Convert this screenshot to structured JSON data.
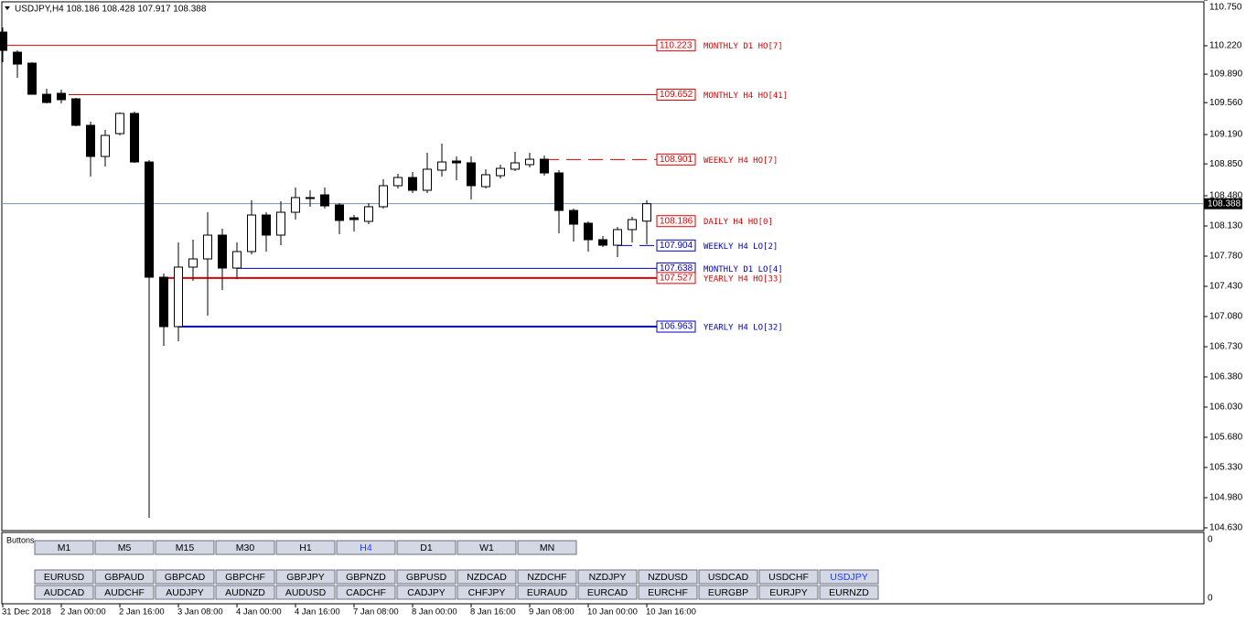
{
  "header": "USDJPY,H4  108.186 108.428 107.917 108.388",
  "chart_data": {
    "type": "candlestick",
    "open": [
      110.378,
      110.145,
      110.018,
      109.657,
      109.668,
      109.604,
      109.297,
      108.936,
      109.201,
      109.435,
      108.872,
      107.536,
      106.963,
      107.653,
      107.748,
      108.024,
      107.642,
      107.833,
      108.257,
      108.024,
      108.289,
      108.459,
      108.491,
      108.374,
      108.225,
      108.183,
      108.353,
      108.597,
      108.692,
      108.544,
      108.777,
      108.883,
      108.862,
      108.586,
      108.713,
      108.788,
      108.841,
      108.904,
      108.745,
      108.31,
      108.162,
      107.971,
      107.907,
      108.088,
      108.186
    ],
    "high": [
      110.431,
      110.166,
      110.028,
      109.721,
      109.71,
      109.615,
      109.339,
      109.244,
      109.445,
      109.456,
      108.894,
      107.578,
      107.939,
      107.971,
      108.289,
      108.098,
      107.939,
      108.427,
      108.289,
      108.416,
      108.575,
      108.544,
      108.575,
      108.395,
      108.257,
      108.395,
      108.671,
      108.735,
      108.756,
      108.978,
      109.085,
      108.936,
      108.936,
      108.788,
      108.841,
      108.989,
      108.978,
      108.947,
      108.777,
      108.331,
      108.183,
      108.013,
      108.119,
      108.236,
      108.428
    ],
    "low": [
      110.028,
      109.848,
      109.657,
      109.551,
      109.551,
      109.286,
      108.703,
      108.819,
      109.18,
      108.862,
      104.747,
      106.741,
      106.794,
      107.494,
      107.091,
      107.388,
      107.515,
      107.801,
      107.833,
      107.907,
      108.204,
      108.353,
      108.331,
      108.035,
      108.066,
      108.151,
      108.331,
      108.565,
      108.512,
      108.512,
      108.703,
      108.66,
      108.438,
      108.565,
      108.681,
      108.766,
      108.809,
      108.713,
      108.045,
      107.95,
      107.833,
      107.886,
      107.769,
      107.939,
      107.917
    ],
    "close": [
      110.166,
      110.007,
      109.657,
      109.562,
      109.594,
      109.297,
      108.936,
      109.18,
      109.435,
      108.872,
      107.536,
      106.963,
      107.653,
      107.748,
      108.024,
      107.642,
      107.833,
      108.257,
      108.024,
      108.289,
      108.459,
      108.448,
      108.363,
      108.194,
      108.204,
      108.353,
      108.597,
      108.692,
      108.544,
      108.788,
      108.872,
      108.862,
      108.597,
      108.724,
      108.798,
      108.862,
      108.904,
      108.745,
      108.31,
      108.151,
      107.971,
      107.907,
      108.088,
      108.204,
      108.388
    ],
    "bull_color": "#ffffff",
    "bear_color": "#000000",
    "ylim": [
      104.598,
      110.75
    ],
    "yticks": [
      {
        "value": 110.75,
        "label": "110.750"
      },
      {
        "value": 110.22,
        "label": "110.220"
      },
      {
        "value": 109.89,
        "label": "109.890"
      },
      {
        "value": 109.56,
        "label": "109.560"
      },
      {
        "value": 109.19,
        "label": "109.190"
      },
      {
        "value": 108.85,
        "label": "108.850"
      },
      {
        "value": 108.48,
        "label": "108.480"
      },
      {
        "value": 108.13,
        "label": "108.130"
      },
      {
        "value": 107.78,
        "label": "107.780"
      },
      {
        "value": 107.43,
        "label": "107.430"
      },
      {
        "value": 107.08,
        "label": "107.080"
      },
      {
        "value": 106.73,
        "label": "106.730"
      },
      {
        "value": 106.38,
        "label": "106.380"
      },
      {
        "value": 106.03,
        "label": "106.030"
      },
      {
        "value": 105.68,
        "label": "105.680"
      },
      {
        "value": 105.33,
        "label": "105.330"
      },
      {
        "value": 104.98,
        "label": "104.980"
      },
      {
        "value": 104.63,
        "label": "104.630"
      }
    ],
    "xticks": [
      {
        "value": 0,
        "label": "31 Dec 2018"
      },
      {
        "value": 4,
        "label": "2 Jan 00:00"
      },
      {
        "value": 8,
        "label": "2 Jan 16:00"
      },
      {
        "value": 12,
        "label": "3 Jan 08:00"
      },
      {
        "value": 16,
        "label": "4 Jan 00:00"
      },
      {
        "value": 20,
        "label": "4 Jan 16:00"
      },
      {
        "value": 24,
        "label": "7 Jan 08:00"
      },
      {
        "value": 28,
        "label": "8 Jan 00:00"
      },
      {
        "value": 32,
        "label": "8 Jan 16:00"
      },
      {
        "value": 36,
        "label": "9 Jan 08:00"
      },
      {
        "value": 40,
        "label": "10 Jan 00:00"
      },
      {
        "value": 44,
        "label": "10 Jan 16:00"
      }
    ],
    "current_price": 108.388,
    "levels": [
      {
        "value": 110.223,
        "name": "MONTHLY D1 HO[7]",
        "color": "#e00000",
        "dash": false,
        "thick": false
      },
      {
        "value": 109.652,
        "name": "MONTHLY H4 HO[41]",
        "color": "#e00000",
        "dash": false,
        "thick": false
      },
      {
        "value": 108.901,
        "name": "WEEKLY H4 HO[7]",
        "color": "#e00000",
        "dash": true,
        "thick": false
      },
      {
        "value": 108.186,
        "name": "DAILY H4 HO[0]",
        "color": "#e00000",
        "dash": false,
        "thick": false
      },
      {
        "value": 107.904,
        "name": "WEEKLY H4 LO[2]",
        "color": "#0000c0",
        "dash": true,
        "thick": false
      },
      {
        "value": 107.638,
        "name": "MONTHLY D1 LO[4]",
        "color": "#0000c0",
        "dash": false,
        "thick": false
      },
      {
        "value": 107.527,
        "name": "YEARLY H4 HO[33]",
        "color": "#e00000",
        "dash": false,
        "thick": true
      },
      {
        "value": 106.963,
        "name": "YEARLY H4 LO[32]",
        "color": "#0000c0",
        "dash": false,
        "thick": true
      }
    ]
  },
  "panel": {
    "title": "Buttons",
    "axis_labels": [
      "0",
      "0"
    ],
    "timeframes": [
      {
        "label": "M1"
      },
      {
        "label": "M5"
      },
      {
        "label": "M15"
      },
      {
        "label": "M30"
      },
      {
        "label": "H1"
      },
      {
        "label": "H4",
        "selected": true
      },
      {
        "label": "D1"
      },
      {
        "label": "W1"
      },
      {
        "label": "MN"
      }
    ],
    "symbols_row1": [
      {
        "label": "EURUSD"
      },
      {
        "label": "GBPAUD"
      },
      {
        "label": "GBPCAD"
      },
      {
        "label": "GBPCHF"
      },
      {
        "label": "GBPJPY"
      },
      {
        "label": "GBPNZD"
      },
      {
        "label": "GBPUSD"
      },
      {
        "label": "NZDCAD"
      },
      {
        "label": "NZDCHF"
      },
      {
        "label": "NZDJPY"
      },
      {
        "label": "NZDUSD"
      },
      {
        "label": "USDCAD"
      },
      {
        "label": "USDCHF"
      },
      {
        "label": "USDJPY",
        "selected": true
      }
    ],
    "symbols_row2": [
      {
        "label": "AUDCAD"
      },
      {
        "label": "AUDCHF"
      },
      {
        "label": "AUDJPY"
      },
      {
        "label": "AUDNZD"
      },
      {
        "label": "AUDUSD"
      },
      {
        "label": "CADCHF"
      },
      {
        "label": "CADJPY"
      },
      {
        "label": "CHFJPY"
      },
      {
        "label": "EURAUD"
      },
      {
        "label": "EURCAD"
      },
      {
        "label": "EURCHF"
      },
      {
        "label": "EURGBP"
      },
      {
        "label": "EURJPY"
      },
      {
        "label": "EURNZD"
      }
    ]
  }
}
